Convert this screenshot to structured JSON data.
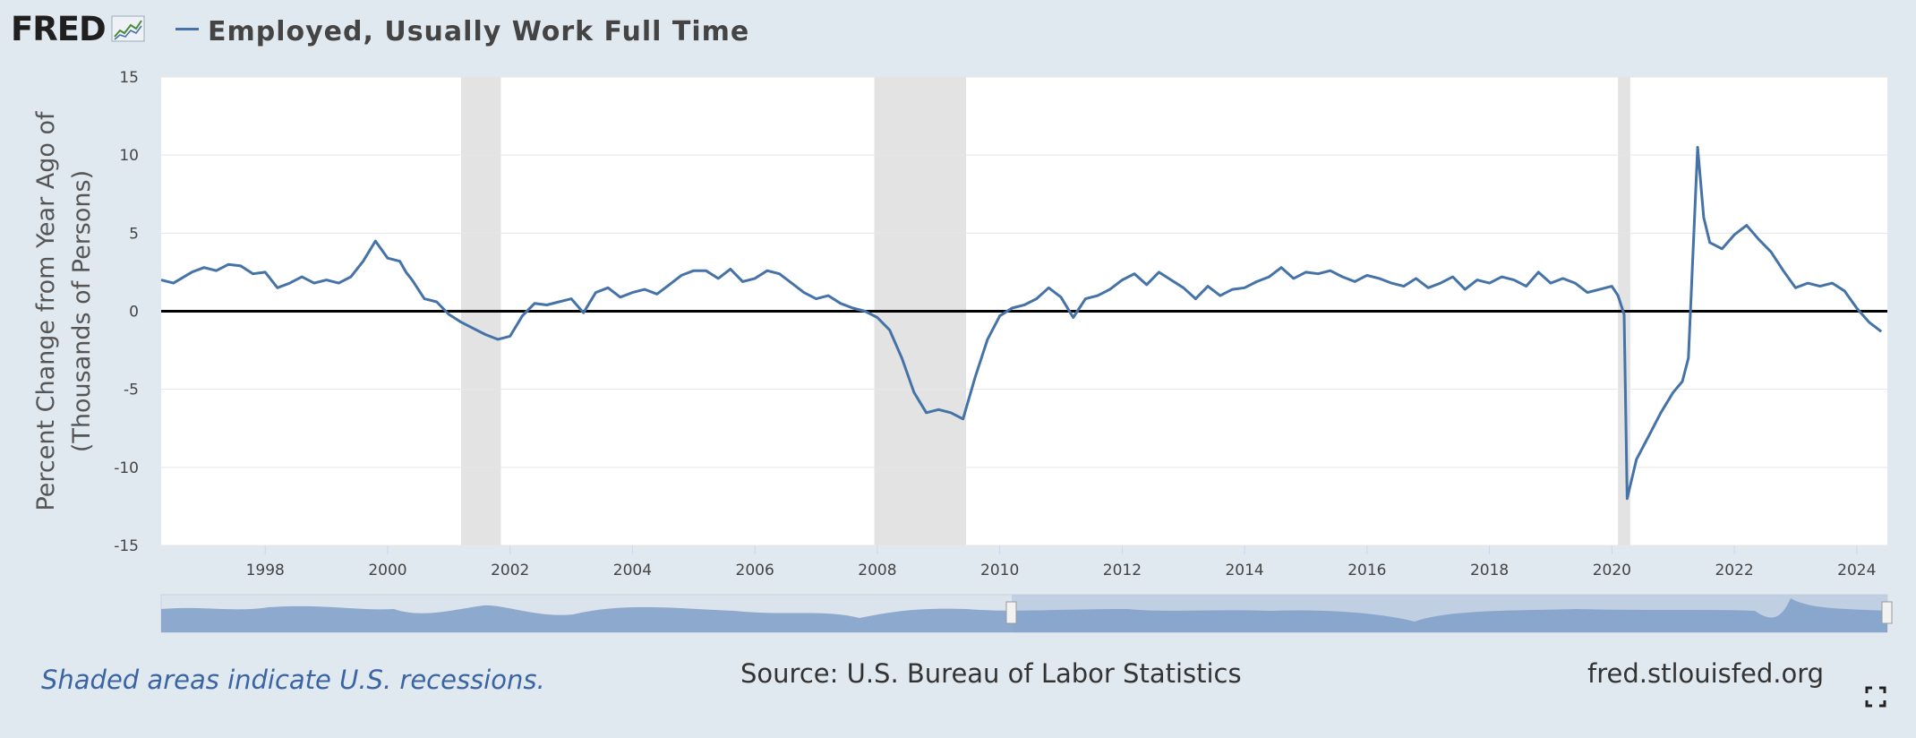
{
  "header": {
    "logo_text": "FRED",
    "title": "Employed, Usually Work Full Time"
  },
  "footer": {
    "recession_note": "Shaded areas indicate U.S. recessions.",
    "source": "Source: U.S. Bureau of Labor Statistics",
    "site": "fred.stlouisfed.org"
  },
  "icons": {
    "logo_mark": "chart-line-icon",
    "fullscreen": "fullscreen-icon"
  },
  "colors": {
    "series": "#4572a7",
    "recession": "#e3e3e3",
    "background": "#e1e9f0",
    "zero_line": "#000000"
  },
  "chart_data": {
    "type": "line",
    "title": "Employed, Usually Work Full Time",
    "ylabel_lines": [
      "Percent Change from Year Ago of",
      "(Thousands of Persons)"
    ],
    "xlabel": "",
    "ylim": [
      -15,
      15
    ],
    "xlim": [
      1996.3,
      2024.5
    ],
    "y_ticks": [
      15,
      10,
      5,
      0,
      -5,
      -10,
      -15
    ],
    "y_tick_labels": [
      "15",
      "10",
      "5",
      "0",
      "-5",
      "-10",
      "-15"
    ],
    "x_ticks": [
      1998,
      2000,
      2002,
      2004,
      2006,
      2008,
      2010,
      2012,
      2014,
      2016,
      2018,
      2020,
      2022,
      2024
    ],
    "x_tick_labels": [
      "1998",
      "2000",
      "2002",
      "2004",
      "2006",
      "2008",
      "2010",
      "2012",
      "2014",
      "2016",
      "2018",
      "2020",
      "2022",
      "2024"
    ],
    "grid": true,
    "zero_line": true,
    "recessions": [
      [
        2001.2,
        2001.85
      ],
      [
        2007.95,
        2009.45
      ],
      [
        2020.1,
        2020.3
      ]
    ],
    "series": [
      {
        "name": "Employed, Usually Work Full Time",
        "x": [
          1996.3,
          1996.5,
          1996.8,
          1997.0,
          1997.2,
          1997.4,
          1997.6,
          1997.8,
          1998.0,
          1998.2,
          1998.4,
          1998.6,
          1998.8,
          1999.0,
          1999.2,
          1999.4,
          1999.6,
          1999.8,
          2000.0,
          2000.2,
          2000.3,
          2000.4,
          2000.6,
          2000.8,
          2001.0,
          2001.2,
          2001.4,
          2001.6,
          2001.8,
          2002.0,
          2002.2,
          2002.4,
          2002.6,
          2002.8,
          2003.0,
          2003.2,
          2003.4,
          2003.6,
          2003.8,
          2004.0,
          2004.2,
          2004.4,
          2004.6,
          2004.8,
          2005.0,
          2005.2,
          2005.4,
          2005.6,
          2005.8,
          2006.0,
          2006.2,
          2006.4,
          2006.6,
          2006.8,
          2007.0,
          2007.2,
          2007.4,
          2007.6,
          2007.8,
          2008.0,
          2008.2,
          2008.4,
          2008.6,
          2008.8,
          2009.0,
          2009.2,
          2009.4,
          2009.6,
          2009.8,
          2010.0,
          2010.2,
          2010.4,
          2010.6,
          2010.8,
          2011.0,
          2011.2,
          2011.4,
          2011.6,
          2011.8,
          2012.0,
          2012.2,
          2012.4,
          2012.6,
          2012.8,
          2013.0,
          2013.2,
          2013.4,
          2013.6,
          2013.8,
          2014.0,
          2014.2,
          2014.4,
          2014.6,
          2014.8,
          2015.0,
          2015.2,
          2015.4,
          2015.6,
          2015.8,
          2016.0,
          2016.2,
          2016.4,
          2016.6,
          2016.8,
          2017.0,
          2017.2,
          2017.4,
          2017.6,
          2017.8,
          2018.0,
          2018.2,
          2018.4,
          2018.6,
          2018.8,
          2019.0,
          2019.2,
          2019.4,
          2019.6,
          2019.8,
          2020.0,
          2020.1,
          2020.2,
          2020.25,
          2020.4,
          2020.6,
          2020.8,
          2021.0,
          2021.15,
          2021.25,
          2021.4,
          2021.5,
          2021.6,
          2021.8,
          2022.0,
          2022.2,
          2022.4,
          2022.6,
          2022.8,
          2023.0,
          2023.2,
          2023.4,
          2023.6,
          2023.8,
          2024.0,
          2024.2,
          2024.4
        ],
        "values": [
          2.0,
          1.8,
          2.5,
          2.8,
          2.6,
          3.0,
          2.9,
          2.4,
          2.5,
          1.5,
          1.8,
          2.2,
          1.8,
          2.0,
          1.8,
          2.2,
          3.2,
          4.5,
          3.4,
          3.2,
          2.5,
          2.0,
          0.8,
          0.6,
          -0.2,
          -0.7,
          -1.1,
          -1.5,
          -1.8,
          -1.6,
          -0.3,
          0.5,
          0.4,
          0.6,
          0.8,
          -0.1,
          1.2,
          1.5,
          0.9,
          1.2,
          1.4,
          1.1,
          1.7,
          2.3,
          2.6,
          2.6,
          2.1,
          2.7,
          1.9,
          2.1,
          2.6,
          2.4,
          1.8,
          1.2,
          0.8,
          1.0,
          0.5,
          0.2,
          0.0,
          -0.4,
          -1.2,
          -3.0,
          -5.2,
          -6.5,
          -6.3,
          -6.5,
          -6.9,
          -4.2,
          -1.8,
          -0.3,
          0.2,
          0.4,
          0.8,
          1.5,
          0.9,
          -0.4,
          0.8,
          1.0,
          1.4,
          2.0,
          2.4,
          1.7,
          2.5,
          2.0,
          1.5,
          0.8,
          1.6,
          1.0,
          1.4,
          1.5,
          1.9,
          2.2,
          2.8,
          2.1,
          2.5,
          2.4,
          2.6,
          2.2,
          1.9,
          2.3,
          2.1,
          1.8,
          1.6,
          2.1,
          1.5,
          1.8,
          2.2,
          1.4,
          2.0,
          1.8,
          2.2,
          2.0,
          1.6,
          2.5,
          1.8,
          2.1,
          1.8,
          1.2,
          1.4,
          1.6,
          1.0,
          -0.2,
          -12.0,
          -9.5,
          -8.0,
          -6.5,
          -5.2,
          -4.5,
          -3.0,
          10.5,
          6.0,
          4.4,
          4.0,
          4.9,
          5.5,
          4.6,
          3.8,
          2.6,
          1.5,
          1.8,
          1.6,
          1.8,
          1.3,
          0.2,
          -0.7,
          -1.3
        ]
      }
    ]
  }
}
